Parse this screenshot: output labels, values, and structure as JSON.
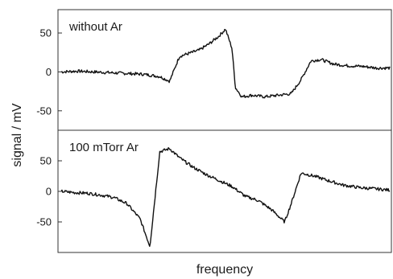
{
  "chart_data": [
    {
      "type": "line",
      "title": "without Ar",
      "xlabel": "frequency",
      "ylabel": "signal / mV",
      "ylim": [
        -75,
        80
      ],
      "yticks": [
        50,
        0,
        -50
      ],
      "ytick_labels": [
        "50",
        "0",
        "-50"
      ],
      "x_ticks_shown": false,
      "x": [
        0,
        0.05,
        0.1,
        0.15,
        0.2,
        0.25,
        0.3,
        0.33,
        0.36,
        0.39,
        0.42,
        0.45,
        0.48,
        0.5,
        0.52,
        0.53,
        0.55,
        0.58,
        0.62,
        0.66,
        0.7,
        0.73,
        0.76,
        0.79,
        0.83,
        0.87,
        0.92,
        0.96,
        1.0
      ],
      "series": [
        {
          "values": [
            0,
            1,
            0,
            -1,
            -2,
            -3,
            -6,
            -12,
            20,
            24,
            28,
            36,
            46,
            55,
            30,
            -20,
            -32,
            -30,
            -32,
            -30,
            -28,
            -10,
            14,
            16,
            10,
            8,
            7,
            5,
            5
          ]
        }
      ]
    },
    {
      "type": "line",
      "title": "100 mTorr Ar",
      "xlabel": "frequency",
      "ylabel": "signal / mV",
      "ylim": [
        -100,
        100
      ],
      "yticks": [
        50,
        0,
        -50
      ],
      "ytick_labels": [
        "50",
        "0",
        "-50"
      ],
      "x_ticks_shown": false,
      "x": [
        0,
        0.04,
        0.08,
        0.12,
        0.16,
        0.2,
        0.24,
        0.27,
        0.3,
        0.33,
        0.36,
        0.4,
        0.44,
        0.48,
        0.52,
        0.56,
        0.6,
        0.64,
        0.68,
        0.7,
        0.73,
        0.77,
        0.81,
        0.86,
        0.91,
        0.96,
        1.0
      ],
      "series": [
        {
          "values": [
            0,
            -2,
            -3,
            -6,
            -10,
            -20,
            -45,
            -90,
            65,
            70,
            55,
            40,
            28,
            18,
            8,
            -8,
            -15,
            -30,
            -50,
            -20,
            30,
            25,
            18,
            10,
            6,
            4,
            2
          ]
        }
      ]
    }
  ]
}
